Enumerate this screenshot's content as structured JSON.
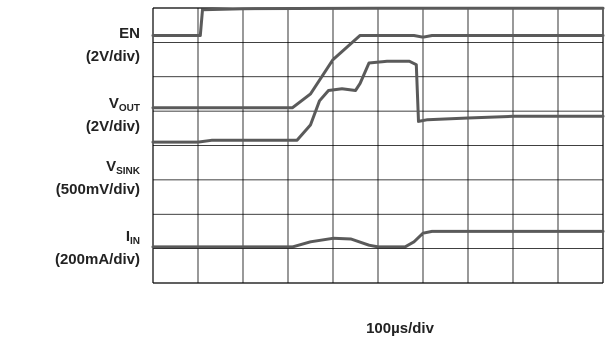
{
  "chart_data": {
    "type": "line",
    "title": "",
    "xlabel": "100µs/div",
    "grid": true,
    "divisions": {
      "x": 10,
      "y": 8
    },
    "trace_color": "#5a5a5a",
    "channels": [
      {
        "name": "EN",
        "name_main": "EN",
        "name_sub": "",
        "scale": "(2V/div)",
        "points": [
          [
            0,
            7.2
          ],
          [
            1.05,
            7.2
          ],
          [
            1.1,
            7.95
          ],
          [
            2,
            7.98
          ],
          [
            5,
            7.99
          ],
          [
            10,
            7.99
          ]
        ]
      },
      {
        "name": "V_OUT",
        "name_main": "V",
        "name_sub": "OUT",
        "scale": "(2V/div)",
        "points": [
          [
            0,
            5.1
          ],
          [
            3.1,
            5.1
          ],
          [
            3.5,
            5.5
          ],
          [
            4.0,
            6.5
          ],
          [
            4.6,
            7.2
          ],
          [
            5.8,
            7.2
          ],
          [
            6.0,
            7.15
          ],
          [
            6.2,
            7.2
          ],
          [
            10,
            7.2
          ]
        ]
      },
      {
        "name": "V_SINK",
        "name_main": "V",
        "name_sub": "SINK",
        "scale": "(500mV/div)",
        "points": [
          [
            0,
            4.1
          ],
          [
            1,
            4.1
          ],
          [
            1.3,
            4.15
          ],
          [
            3.2,
            4.15
          ],
          [
            3.5,
            4.6
          ],
          [
            3.7,
            5.3
          ],
          [
            3.9,
            5.6
          ],
          [
            4.2,
            5.65
          ],
          [
            4.5,
            5.6
          ],
          [
            4.6,
            5.8
          ],
          [
            4.8,
            6.4
          ],
          [
            5.2,
            6.45
          ],
          [
            5.7,
            6.45
          ],
          [
            5.85,
            6.35
          ],
          [
            5.9,
            4.7
          ],
          [
            6.1,
            4.75
          ],
          [
            7,
            4.8
          ],
          [
            8,
            4.85
          ],
          [
            10,
            4.85
          ]
        ]
      },
      {
        "name": "I_IN",
        "name_main": "I",
        "name_sub": "IN",
        "scale": "(200mA/div)",
        "points": [
          [
            0,
            1.05
          ],
          [
            3.1,
            1.05
          ],
          [
            3.5,
            1.2
          ],
          [
            4.0,
            1.3
          ],
          [
            4.4,
            1.28
          ],
          [
            4.8,
            1.1
          ],
          [
            5.0,
            1.05
          ],
          [
            5.6,
            1.05
          ],
          [
            5.8,
            1.2
          ],
          [
            6.0,
            1.45
          ],
          [
            6.2,
            1.5
          ],
          [
            10,
            1.5
          ]
        ]
      }
    ]
  }
}
